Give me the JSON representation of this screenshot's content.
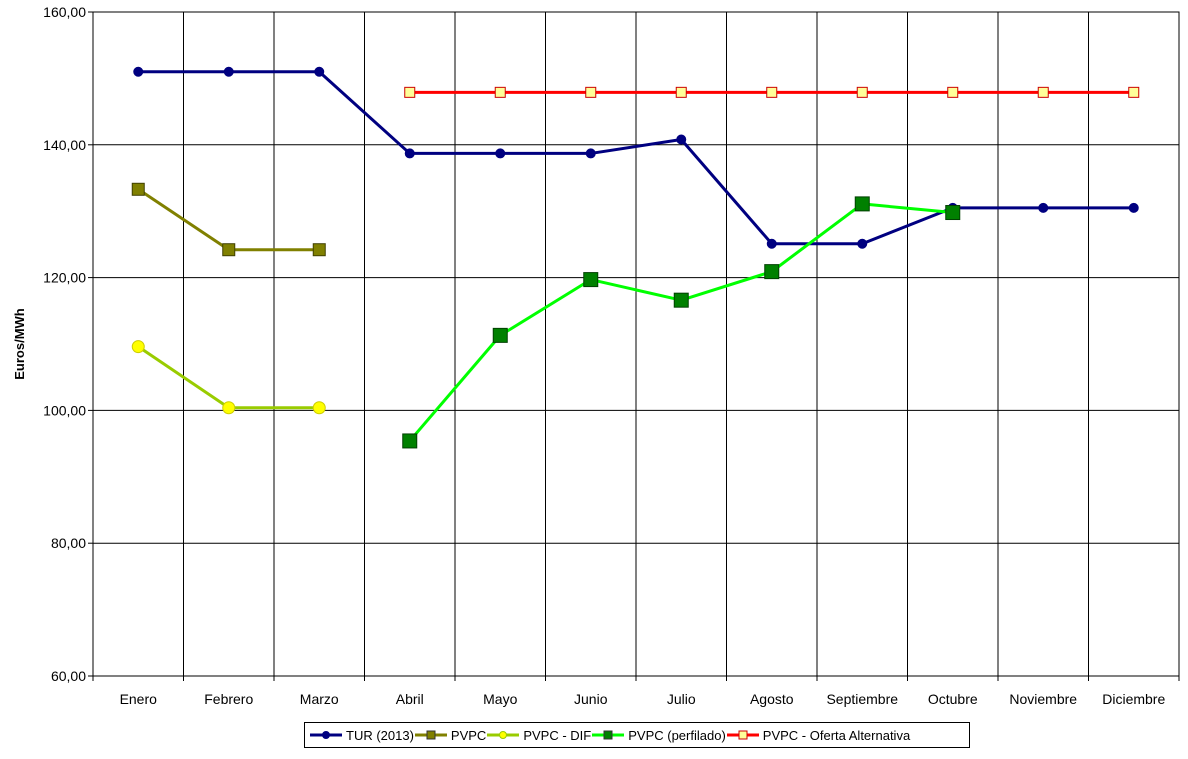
{
  "chart_data": {
    "type": "line",
    "ylabel": "Euros/MWh",
    "xlabel": "",
    "title": "",
    "ylim": [
      60,
      160
    ],
    "yticks": [
      "60,00",
      "80,00",
      "100,00",
      "120,00",
      "140,00",
      "160,00"
    ],
    "grid": true,
    "legend_position": "bottom",
    "categories": [
      "Enero",
      "Febrero",
      "Marzo",
      "Abril",
      "Mayo",
      "Junio",
      "Julio",
      "Agosto",
      "Septiembre",
      "Octubre",
      "Noviembre",
      "Diciembre"
    ],
    "series": [
      {
        "name": "TUR (2013)",
        "color": "#000080",
        "marker": "circle",
        "marker_fill": "#000080",
        "values": [
          151.0,
          151.0,
          151.0,
          138.7,
          138.7,
          138.7,
          140.8,
          125.1,
          125.1,
          130.5,
          130.5,
          130.5
        ]
      },
      {
        "name": "PVPC",
        "color": "#808000",
        "marker": "square",
        "marker_fill": "#808000",
        "values": [
          133.3,
          124.2,
          124.2,
          null,
          null,
          null,
          null,
          null,
          null,
          null,
          null,
          null
        ]
      },
      {
        "name": "PVPC - DIF",
        "color": "#99cc00",
        "marker": "circle",
        "marker_fill": "#ffff00",
        "values": [
          109.6,
          100.4,
          100.4,
          null,
          null,
          null,
          null,
          null,
          null,
          null,
          null,
          null
        ]
      },
      {
        "name": "PVPC (perfilado)",
        "color": "#00ff00",
        "marker": "square",
        "marker_fill": "#008000",
        "values": [
          null,
          null,
          null,
          95.4,
          111.3,
          119.7,
          116.6,
          120.9,
          131.1,
          129.8,
          null,
          null
        ]
      },
      {
        "name": "PVPC - Oferta Alternativa",
        "color": "#ff0000",
        "marker": "square",
        "marker_fill": "#ffff99",
        "values": [
          null,
          null,
          null,
          147.9,
          147.9,
          147.9,
          147.9,
          147.9,
          147.9,
          147.9,
          147.9,
          147.9
        ]
      }
    ]
  }
}
